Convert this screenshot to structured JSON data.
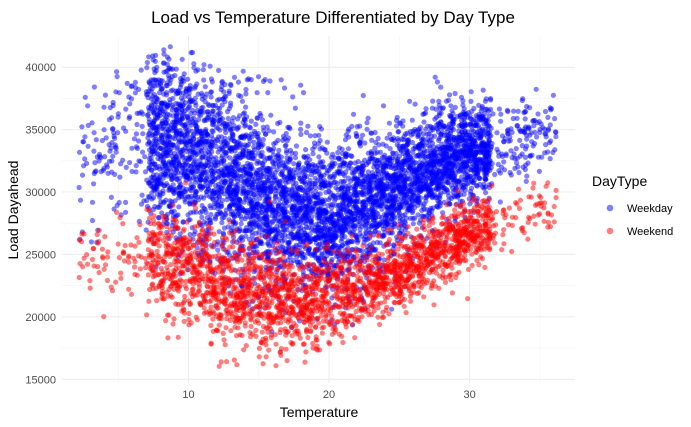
{
  "chart_data": {
    "type": "scatter",
    "title": "Load vs Temperature Differentiated by Day Type",
    "xlabel": "Temperature",
    "ylabel": "Load Dayahead",
    "xlim": [
      1,
      37.5
    ],
    "ylim": [
      14700,
      42500
    ],
    "x_ticks": [
      10,
      20,
      30
    ],
    "y_ticks": [
      15000,
      20000,
      25000,
      30000,
      35000,
      40000
    ],
    "grid": true,
    "legend": {
      "title": "DayType",
      "position": "right"
    },
    "series": [
      {
        "name": "Weekday",
        "color": "#0000FF",
        "opacity": 0.5,
        "approx_points": 5200,
        "trend": [
          [
            2.5,
            33000
          ],
          [
            5,
            33500
          ],
          [
            7.5,
            34200
          ],
          [
            10,
            33200
          ],
          [
            12.5,
            31500
          ],
          [
            15,
            29800
          ],
          [
            17.5,
            28400
          ],
          [
            20,
            27800
          ],
          [
            22.5,
            28800
          ],
          [
            25,
            30500
          ],
          [
            27.5,
            32200
          ],
          [
            30,
            33200
          ],
          [
            32.5,
            34000
          ],
          [
            35,
            34800
          ]
        ],
        "spread": [
          [
            2.5,
            6000
          ],
          [
            7.5,
            7200
          ],
          [
            12.5,
            7500
          ],
          [
            17.5,
            6200
          ],
          [
            22.5,
            5800
          ],
          [
            27.5,
            4500
          ],
          [
            32.5,
            3500
          ],
          [
            35,
            3000
          ]
        ]
      },
      {
        "name": "Weekend",
        "color": "#FF0000",
        "opacity": 0.5,
        "approx_points": 2400,
        "trend": [
          [
            2.5,
            25000
          ],
          [
            5,
            25000
          ],
          [
            7.5,
            24600
          ],
          [
            10,
            23800
          ],
          [
            12.5,
            22500
          ],
          [
            15,
            21700
          ],
          [
            17.5,
            21300
          ],
          [
            20,
            21500
          ],
          [
            22.5,
            22200
          ],
          [
            25,
            23500
          ],
          [
            27.5,
            25200
          ],
          [
            30,
            26600
          ],
          [
            32.5,
            27700
          ],
          [
            35,
            29000
          ]
        ],
        "spread": [
          [
            2.5,
            3500
          ],
          [
            7.5,
            4200
          ],
          [
            12.5,
            4300
          ],
          [
            17.5,
            3800
          ],
          [
            22.5,
            3200
          ],
          [
            27.5,
            2800
          ],
          [
            32.5,
            2500
          ],
          [
            35,
            2500
          ]
        ]
      }
    ]
  }
}
